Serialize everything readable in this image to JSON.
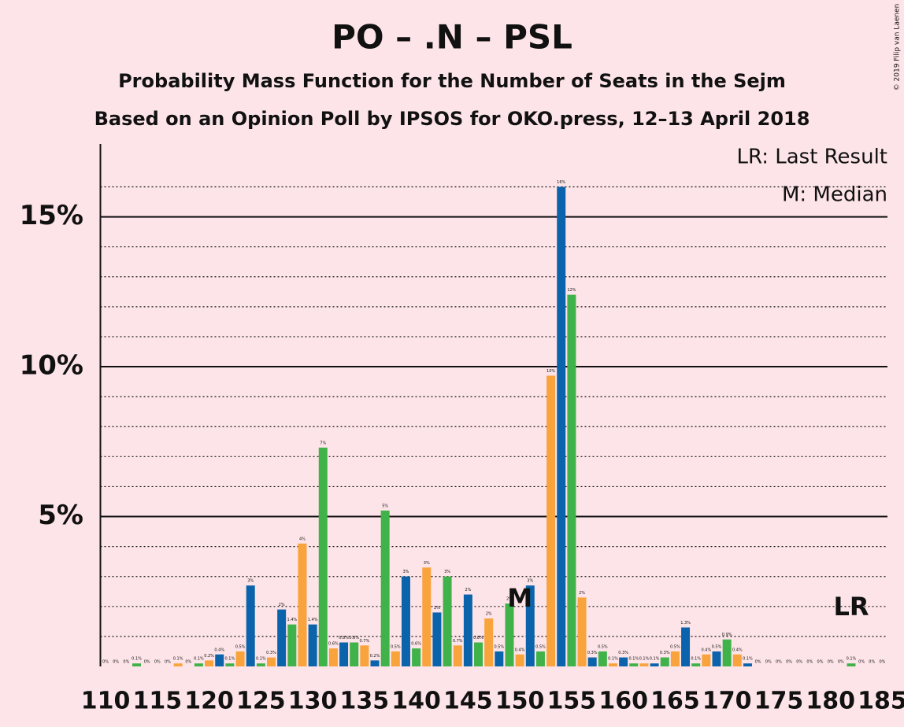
{
  "chart_data": {
    "type": "bar",
    "title": "PO – .N – PSL",
    "subtitle": "Probability Mass Function for the Number of Seats in the Sejm",
    "subtitle2": "Based on an Opinion Poll by IPSOS for OKO.press, 12–13 April 2018",
    "copyright": "© 2019 Filip van Laenen",
    "legend_lr": "LR: Last Result",
    "legend_m": "M: Median",
    "median_label": "M",
    "median_x": 150,
    "last_result_label": "LR",
    "last_result_x": 182,
    "x": [
      110,
      111,
      112,
      113,
      114,
      115,
      116,
      117,
      118,
      119,
      120,
      121,
      122,
      123,
      124,
      125,
      126,
      127,
      128,
      129,
      130,
      131,
      132,
      133,
      134,
      135,
      136,
      137,
      138,
      139,
      140,
      141,
      142,
      143,
      144,
      145,
      146,
      147,
      148,
      149,
      150,
      151,
      152,
      153,
      154,
      155,
      156,
      157,
      158,
      159,
      160,
      161,
      162,
      163,
      164,
      165,
      166,
      167,
      168,
      169,
      170,
      171,
      172,
      173,
      174,
      175,
      176,
      177,
      178,
      179,
      180,
      181,
      182,
      183,
      184,
      185
    ],
    "values": [
      0,
      0,
      0,
      0.1,
      0,
      0,
      0,
      0.1,
      0,
      0.1,
      0.2,
      0.4,
      0.1,
      0.5,
      2.7,
      0.1,
      0.3,
      1.9,
      1.4,
      4.1,
      1.4,
      7.3,
      0.6,
      0.8,
      0.8,
      0.7,
      0.2,
      5.2,
      0.5,
      3.0,
      0.6,
      3.3,
      1.8,
      3.0,
      0.7,
      2.4,
      0.8,
      1.6,
      0.5,
      2.1,
      0.4,
      2.7,
      0.5,
      9.7,
      16.0,
      12.4,
      2.3,
      0.3,
      0.5,
      0.1,
      0.3,
      0.1,
      0.1,
      0.1,
      0.3,
      0.5,
      1.3,
      0.1,
      0.4,
      0.5,
      0.9,
      0.4,
      0.1,
      0,
      0,
      0,
      0,
      0,
      0,
      0,
      0,
      0,
      0.1,
      0,
      0,
      0
    ],
    "value_labels": [
      "0%",
      "0%",
      "0%",
      "0.1%",
      "0%",
      "0%",
      "0%",
      "0.1%",
      "0%",
      "0.1%",
      "0.2%",
      "0.4%",
      "0.1%",
      "0.5%",
      "3%",
      "0.1%",
      "0.3%",
      "2%",
      "1.4%",
      "4%",
      "1.4%",
      "7%",
      "0.6%",
      "0.8%",
      "0.8%",
      "0.7%",
      "0.2%",
      "5%",
      "0.5%",
      "3%",
      "0.6%",
      "3%",
      "2%",
      "3%",
      "0.7%",
      "2%",
      "0.8%",
      "2%",
      "0.5%",
      "2%",
      "0.4%",
      "3%",
      "0.5%",
      "10%",
      "16%",
      "12%",
      "2%",
      "0.3%",
      "0.5%",
      "0.1%",
      "0.3%",
      "0.1%",
      "0.1%",
      "0.1%",
      "0.3%",
      "0.5%",
      "1.3%",
      "0.1%",
      "0.4%",
      "0.5%",
      "0.9%",
      "0.4%",
      "0.1%",
      "0%",
      "0%",
      "0%",
      "0%",
      "0%",
      "0%",
      "0%",
      "0%",
      "0%",
      "0.1%",
      "0%",
      "0%",
      "0%"
    ],
    "colors": [
      "#3fb34a",
      "#f8a33c",
      "#0b64ab"
    ],
    "xlim": [
      109.5,
      185.5
    ],
    "xticks": [
      110,
      115,
      120,
      125,
      130,
      135,
      140,
      145,
      150,
      155,
      160,
      165,
      170,
      175,
      180,
      185
    ],
    "ylim": [
      0,
      17.43
    ],
    "yticks": [
      {
        "value": 5,
        "label": "5%"
      },
      {
        "value": 10,
        "label": "10%"
      },
      {
        "value": 15,
        "label": "15%"
      }
    ],
    "minor_yticks": [
      1,
      2,
      3,
      4,
      6,
      7,
      8,
      9,
      11,
      12,
      13,
      14,
      16
    ],
    "grid": true
  }
}
